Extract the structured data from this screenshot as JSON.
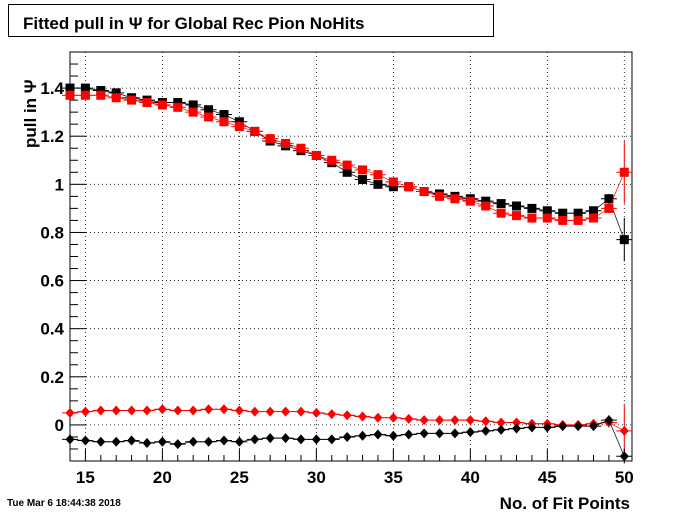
{
  "title": "Fitted pull in  Ψ  for Global Rec Pion NoHits",
  "timestamp": "Tue Mar  6 18:44:38 2018",
  "chart_data": {
    "type": "scatter",
    "title": "Fitted pull in  Ψ  for Global Rec Pion NoHits",
    "xlabel": "No. of Fit Points",
    "ylabel": "pull in  Ψ",
    "xlim": [
      14,
      50.5
    ],
    "ylim": [
      -0.15,
      1.55
    ],
    "xticks": [
      15,
      20,
      25,
      30,
      35,
      40,
      45,
      50
    ],
    "yticks": [
      0,
      0.2,
      0.4,
      0.6,
      0.8,
      1,
      1.2,
      1.4
    ],
    "ytick_labels": [
      "0",
      "0.2",
      "0.4",
      "0.6",
      "0.8",
      "1",
      "1.2",
      "1.4"
    ],
    "grid": true,
    "x": [
      14,
      15,
      16,
      17,
      18,
      19,
      20,
      21,
      22,
      23,
      24,
      25,
      26,
      27,
      28,
      29,
      30,
      31,
      32,
      33,
      34,
      35,
      36,
      37,
      38,
      39,
      40,
      41,
      42,
      43,
      44,
      45,
      46,
      47,
      48,
      49,
      50
    ],
    "series": [
      {
        "marker": "square",
        "color": "#000000",
        "values": [
          1.4,
          1.4,
          1.39,
          1.38,
          1.36,
          1.35,
          1.34,
          1.34,
          1.33,
          1.31,
          1.29,
          1.26,
          1.22,
          1.18,
          1.16,
          1.14,
          1.12,
          1.09,
          1.05,
          1.02,
          1.0,
          0.99,
          0.99,
          0.97,
          0.96,
          0.95,
          0.94,
          0.93,
          0.92,
          0.91,
          0.9,
          0.89,
          0.88,
          0.88,
          0.89,
          0.94,
          0.77
        ],
        "errors": [
          0.02,
          0.01,
          0.01,
          0.01,
          0.01,
          0.01,
          0.01,
          0.01,
          0.01,
          0.01,
          0.01,
          0.01,
          0.01,
          0.01,
          0.01,
          0.01,
          0.01,
          0.01,
          0.01,
          0.01,
          0.01,
          0.01,
          0.01,
          0.01,
          0.01,
          0.01,
          0.01,
          0.01,
          0.01,
          0.01,
          0.01,
          0.01,
          0.01,
          0.01,
          0.01,
          0.02,
          0.09
        ]
      },
      {
        "marker": "square",
        "color": "#ff0000",
        "values": [
          1.37,
          1.37,
          1.37,
          1.36,
          1.35,
          1.34,
          1.33,
          1.32,
          1.3,
          1.28,
          1.26,
          1.24,
          1.22,
          1.19,
          1.17,
          1.15,
          1.12,
          1.1,
          1.08,
          1.06,
          1.04,
          1.01,
          0.99,
          0.97,
          0.95,
          0.94,
          0.93,
          0.91,
          0.88,
          0.87,
          0.86,
          0.86,
          0.85,
          0.85,
          0.86,
          0.9,
          1.05
        ],
        "errors": [
          0.02,
          0.01,
          0.01,
          0.01,
          0.01,
          0.01,
          0.01,
          0.01,
          0.01,
          0.01,
          0.01,
          0.01,
          0.01,
          0.01,
          0.01,
          0.01,
          0.01,
          0.01,
          0.01,
          0.01,
          0.01,
          0.01,
          0.01,
          0.01,
          0.01,
          0.01,
          0.01,
          0.01,
          0.01,
          0.01,
          0.01,
          0.01,
          0.01,
          0.01,
          0.01,
          0.02,
          0.13
        ]
      },
      {
        "marker": "diamond",
        "color": "#ff0000",
        "values": [
          0.05,
          0.055,
          0.06,
          0.06,
          0.06,
          0.06,
          0.065,
          0.06,
          0.06,
          0.065,
          0.065,
          0.06,
          0.055,
          0.055,
          0.055,
          0.055,
          0.05,
          0.045,
          0.04,
          0.035,
          0.03,
          0.03,
          0.025,
          0.02,
          0.02,
          0.02,
          0.02,
          0.015,
          0.01,
          0.01,
          0.005,
          0.005,
          0.0,
          0.0,
          0.005,
          0.01,
          -0.025
        ],
        "errors": [
          0.01,
          0.01,
          0.01,
          0.01,
          0.01,
          0.01,
          0.01,
          0.01,
          0.01,
          0.01,
          0.01,
          0.01,
          0.01,
          0.01,
          0.01,
          0.01,
          0.01,
          0.01,
          0.01,
          0.01,
          0.01,
          0.01,
          0.01,
          0.01,
          0.01,
          0.01,
          0.01,
          0.01,
          0.01,
          0.01,
          0.01,
          0.01,
          0.01,
          0.01,
          0.01,
          0.02,
          0.11
        ]
      },
      {
        "marker": "diamond",
        "color": "#000000",
        "values": [
          -0.06,
          -0.065,
          -0.07,
          -0.07,
          -0.065,
          -0.075,
          -0.07,
          -0.08,
          -0.07,
          -0.07,
          -0.065,
          -0.07,
          -0.06,
          -0.055,
          -0.055,
          -0.06,
          -0.06,
          -0.06,
          -0.05,
          -0.045,
          -0.04,
          -0.045,
          -0.04,
          -0.035,
          -0.035,
          -0.035,
          -0.03,
          -0.025,
          -0.02,
          -0.015,
          -0.01,
          -0.01,
          -0.005,
          -0.005,
          -0.005,
          0.02,
          -0.13
        ],
        "errors": [
          0.01,
          0.01,
          0.01,
          0.01,
          0.01,
          0.01,
          0.01,
          0.01,
          0.01,
          0.01,
          0.01,
          0.01,
          0.01,
          0.01,
          0.01,
          0.01,
          0.01,
          0.01,
          0.01,
          0.01,
          0.01,
          0.01,
          0.01,
          0.01,
          0.01,
          0.01,
          0.01,
          0.01,
          0.01,
          0.01,
          0.01,
          0.01,
          0.01,
          0.01,
          0.01,
          0.02,
          0.03
        ]
      }
    ]
  }
}
